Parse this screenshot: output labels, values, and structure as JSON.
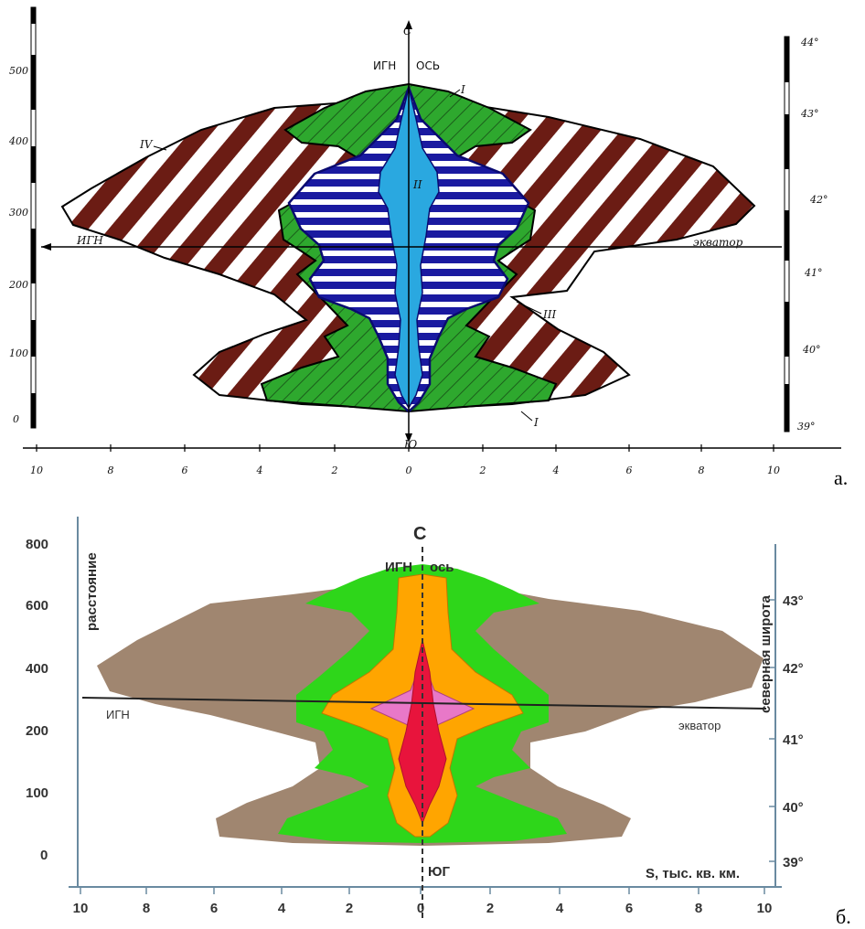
{
  "panel_a": {
    "panel_label": "а.",
    "north_label": "С",
    "south_label": "Ю",
    "ign_top_label": "ИГН",
    "axis_label": "ОСЬ",
    "ign_left_label": "ИГН",
    "equator_label": "экватор",
    "zone_labels": [
      "I",
      "II",
      "III",
      "IV",
      "I"
    ],
    "left_ticks": [
      "500",
      "400",
      "300",
      "200",
      "100",
      "0"
    ],
    "right_ticks": [
      "44°",
      "43°",
      "42°",
      "41°",
      "40°",
      "39°"
    ],
    "bottom_ticks": [
      "10",
      "8",
      "6",
      "4",
      "2",
      "0",
      "2",
      "4",
      "6",
      "8",
      "10"
    ]
  },
  "panel_b": {
    "panel_label": "б.",
    "north_label": "С",
    "south_label": "ЮГ",
    "ign_top_label": "ИГН",
    "axis_label": "ось",
    "ign_left_label": "ИГН",
    "equator_label": "экватор",
    "ylabel": "расстояние",
    "y2label": "северная широта",
    "xlabel": "S, тыс. кв. км.",
    "left_ticks": [
      "800",
      "600",
      "400",
      "200",
      "100",
      "0"
    ],
    "right_ticks": [
      "43°",
      "42°",
      "41°",
      "40°",
      "39°"
    ],
    "bottom_ticks": [
      "10",
      "8",
      "6",
      "4",
      "2",
      "0",
      "2",
      "4",
      "6",
      "8",
      "10"
    ],
    "colors": {
      "outer": "#a08670",
      "green": "#2ed61a",
      "orange": "#ffa500",
      "pink": "#e878c8",
      "red": "#e8143c"
    }
  },
  "colors_a": {
    "brown": "#6b1c14",
    "green": "#2ea82e",
    "blue": "#1a1aa0",
    "light_blue": "#2aa8e0"
  }
}
